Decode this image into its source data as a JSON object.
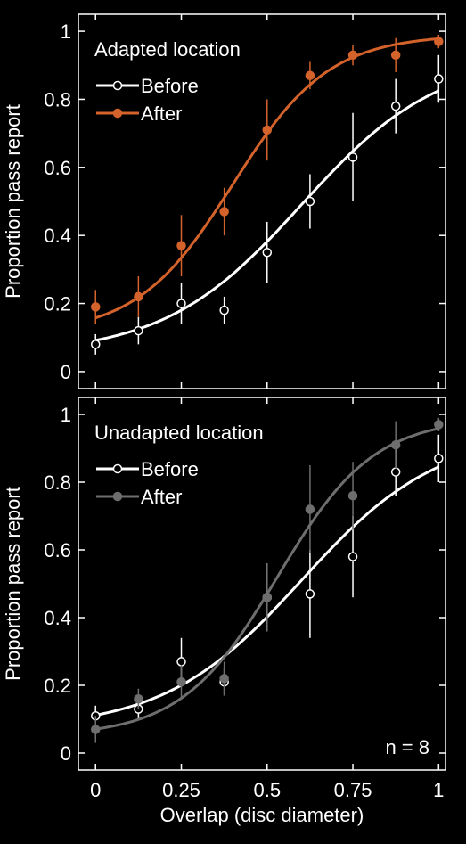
{
  "chart_data": [
    {
      "type": "line",
      "title": "Adapted location",
      "ylabel": "Proportion pass report",
      "xlabel": "",
      "xlim": [
        -0.05,
        1.02
      ],
      "ylim": [
        -0.05,
        1.05
      ],
      "xticks": [
        0,
        0.25,
        0.5,
        0.75,
        1
      ],
      "xtick_labels": [
        "",
        "",
        "",
        "",
        ""
      ],
      "yticks": [
        0,
        0.2,
        0.4,
        0.6,
        0.8,
        1
      ],
      "ytick_labels": [
        "0",
        "0.2",
        "0.4",
        "0.6",
        "0.8",
        "1"
      ],
      "legend_position": "top-left",
      "note": "",
      "x": [
        0,
        0.125,
        0.25,
        0.375,
        0.5,
        0.625,
        0.75,
        0.875,
        1
      ],
      "series": [
        {
          "name": "Before",
          "marker": "open",
          "color": "#ffffff",
          "values": [
            0.08,
            0.12,
            0.2,
            0.18,
            0.35,
            0.5,
            0.63,
            0.78,
            0.86
          ],
          "errors": [
            0.03,
            0.04,
            0.06,
            0.04,
            0.09,
            0.08,
            0.13,
            0.08,
            0.07
          ],
          "fit": {
            "x0": 0.6,
            "s": 0.2,
            "lo": 0.05,
            "hi": 0.93
          }
        },
        {
          "name": "After",
          "marker": "filled",
          "color": "#d4622b",
          "values": [
            0.19,
            0.22,
            0.37,
            0.47,
            0.71,
            0.87,
            0.93,
            0.93,
            0.97
          ],
          "errors": [
            0.05,
            0.06,
            0.09,
            0.07,
            0.09,
            0.04,
            0.03,
            0.05,
            0.02
          ],
          "fit": {
            "x0": 0.4,
            "s": 0.14,
            "lo": 0.11,
            "hi": 0.99
          }
        }
      ]
    },
    {
      "type": "line",
      "title": "Unadapted location",
      "ylabel": "Proportion pass report",
      "xlabel": "Overlap (disc diameter)",
      "xlim": [
        -0.05,
        1.02
      ],
      "ylim": [
        -0.05,
        1.05
      ],
      "xticks": [
        0,
        0.25,
        0.5,
        0.75,
        1
      ],
      "xtick_labels": [
        "0",
        "0.25",
        "0.5",
        "0.75",
        "1"
      ],
      "yticks": [
        0,
        0.2,
        0.4,
        0.6,
        0.8,
        1
      ],
      "ytick_labels": [
        "0",
        "0.2",
        "0.4",
        "0.6",
        "0.8",
        "1"
      ],
      "legend_position": "top-left",
      "note": "n = 8",
      "x": [
        0,
        0.125,
        0.25,
        0.375,
        0.5,
        0.625,
        0.75,
        0.875,
        1
      ],
      "series": [
        {
          "name": "Before",
          "marker": "open",
          "color": "#ffffff",
          "values": [
            0.11,
            0.13,
            0.27,
            0.21,
            0.46,
            0.47,
            0.58,
            0.83,
            0.87
          ],
          "errors": [
            0.03,
            0.03,
            0.07,
            0.04,
            0.1,
            0.13,
            0.12,
            0.07,
            0.07
          ],
          "fit": {
            "x0": 0.6,
            "s": 0.2,
            "lo": 0.07,
            "hi": 0.95
          }
        },
        {
          "name": "After",
          "marker": "filled",
          "color": "#6e6e6e",
          "values": [
            0.07,
            0.16,
            0.21,
            0.22,
            0.46,
            0.72,
            0.76,
            0.91,
            0.97
          ],
          "errors": [
            0.04,
            0.03,
            0.05,
            0.05,
            0.1,
            0.13,
            0.1,
            0.07,
            0.02
          ],
          "fit": {
            "x0": 0.53,
            "s": 0.14,
            "lo": 0.05,
            "hi": 0.99
          }
        }
      ]
    }
  ]
}
